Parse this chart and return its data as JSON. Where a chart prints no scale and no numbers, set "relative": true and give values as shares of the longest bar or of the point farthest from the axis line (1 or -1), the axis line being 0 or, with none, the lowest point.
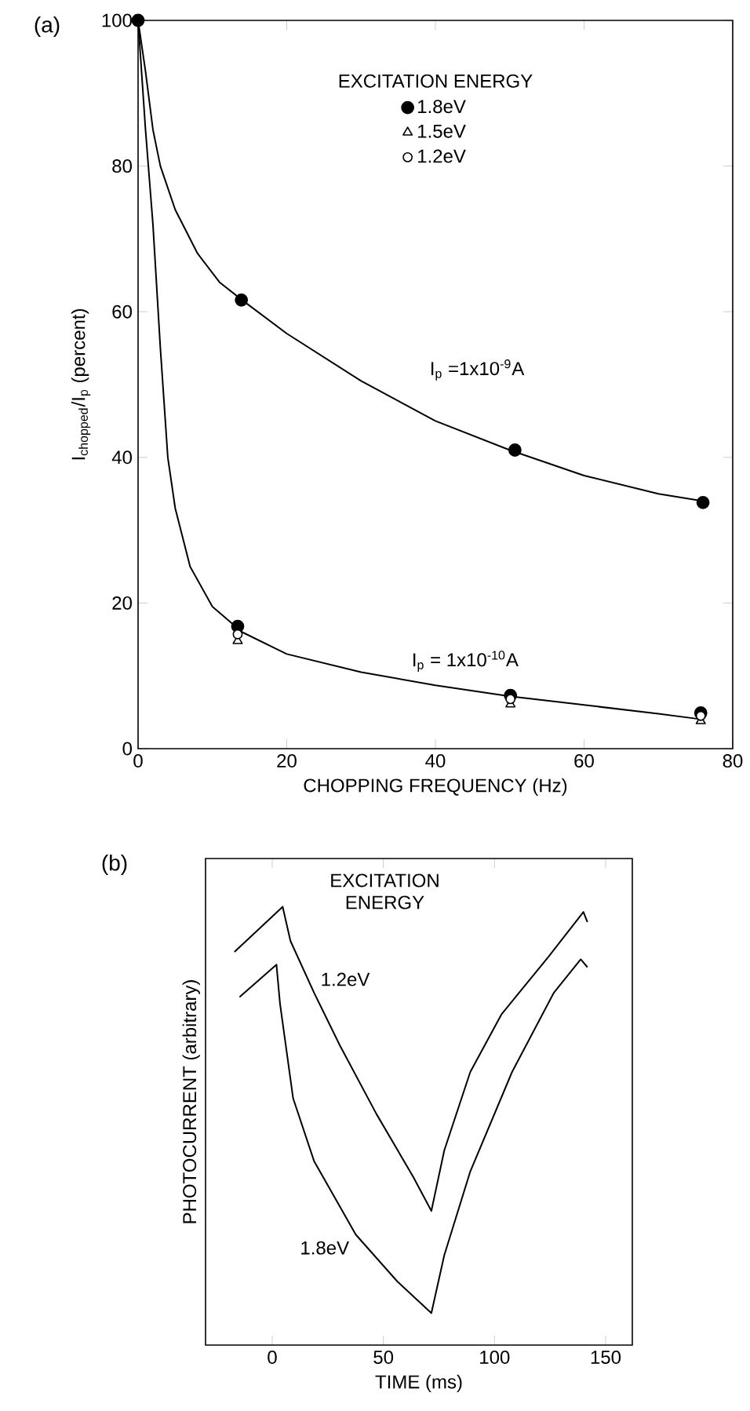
{
  "chart_data": [
    {
      "type": "scatter",
      "title": "(a)",
      "xlabel": "CHOPPING FREQUENCY (Hz)",
      "ylabel": "I$_{chopped}$/I$_{p}$ (percent)",
      "legend_title": "EXCITATION ENERGY",
      "legend": "top",
      "xlim": [
        0,
        80
      ],
      "ylim": [
        0,
        100
      ],
      "xticks": [
        0,
        20,
        40,
        60,
        80
      ],
      "yticks": [
        0,
        20,
        40,
        60,
        80,
        100
      ],
      "annotations": [
        "I$_{p}$ =1x10$^{-9}$A",
        "I$_{p}$ = 1x10$^{-10}$A"
      ],
      "series": [
        {
          "type": "line",
          "color": "#000000",
          "x": [
            0,
            1,
            2,
            3,
            5,
            8,
            11,
            14,
            20,
            30,
            40,
            50,
            60,
            70,
            76
          ],
          "values": [
            100,
            93,
            85,
            80,
            74,
            68,
            64,
            61.6,
            57,
            50.5,
            45,
            41,
            37.5,
            35,
            34
          ]
        },
        {
          "type": "line",
          "color": "#000000",
          "x": [
            0,
            1,
            2,
            3,
            4,
            5,
            7,
            10,
            14,
            20,
            30,
            40,
            50,
            60,
            70,
            76
          ],
          "values": [
            100,
            85,
            72,
            55,
            40,
            33,
            25,
            19.5,
            16,
            13,
            10.5,
            8.7,
            7.2,
            6,
            4.8,
            4
          ]
        },
        {
          "name": "1.8eV",
          "color": "#000000",
          "marker": "circle",
          "x": [
            0,
            13.9,
            50.7,
            76,
            13.4,
            50.1,
            75.7
          ],
          "values": [
            100,
            61.6,
            41,
            33.8,
            16.8,
            7.3,
            4.9
          ]
        },
        {
          "name": "1.5eV",
          "color": "#ffffff",
          "marker": "triangle",
          "x": [
            13.4,
            50.1,
            75.7
          ],
          "values": [
            14.8,
            6.1,
            3.8
          ]
        },
        {
          "name": "1.2eV",
          "color": "#ffffff",
          "marker": "circle",
          "x": [
            13.4,
            50.1,
            75.7
          ],
          "values": [
            15.7,
            6.8,
            4.5
          ]
        }
      ]
    },
    {
      "type": "line",
      "title": "(b)",
      "xlabel": "TIME (ms)",
      "ylabel": "PHOTOCURRENT (arbitrary)",
      "legend_title": "EXCITATION ENERGY",
      "relative": true,
      "xlim": [
        -30,
        162
      ],
      "xticks": [
        0,
        50,
        100,
        150
      ],
      "series": [
        {
          "name": "1.2eV",
          "color": "#000000",
          "x": [
            -17,
            4.7,
            8.2,
            18.8,
            30.5,
            46.9,
            63.4,
            71.6,
            77.4,
            89.1,
            103.2,
            124.3,
            140,
            141.8
          ],
          "values": [
            0.897,
            1,
            0.922,
            0.804,
            0.683,
            0.527,
            0.384,
            0.306,
            0.444,
            0.623,
            0.755,
            0.886,
            0.988,
            0.965
          ]
        },
        {
          "name": "1.8eV",
          "color": "#000000",
          "x": [
            -14.7,
            1.9,
            3.5,
            9.4,
            18.8,
            37.6,
            56.3,
            71.6,
            77.4,
            89.1,
            107.9,
            126.6,
            138.8,
            141.8
          ],
          "values": [
            0.794,
            0.868,
            0.779,
            0.563,
            0.42,
            0.252,
            0.145,
            0.073,
            0.205,
            0.396,
            0.623,
            0.803,
            0.88,
            0.862
          ]
        }
      ]
    }
  ]
}
